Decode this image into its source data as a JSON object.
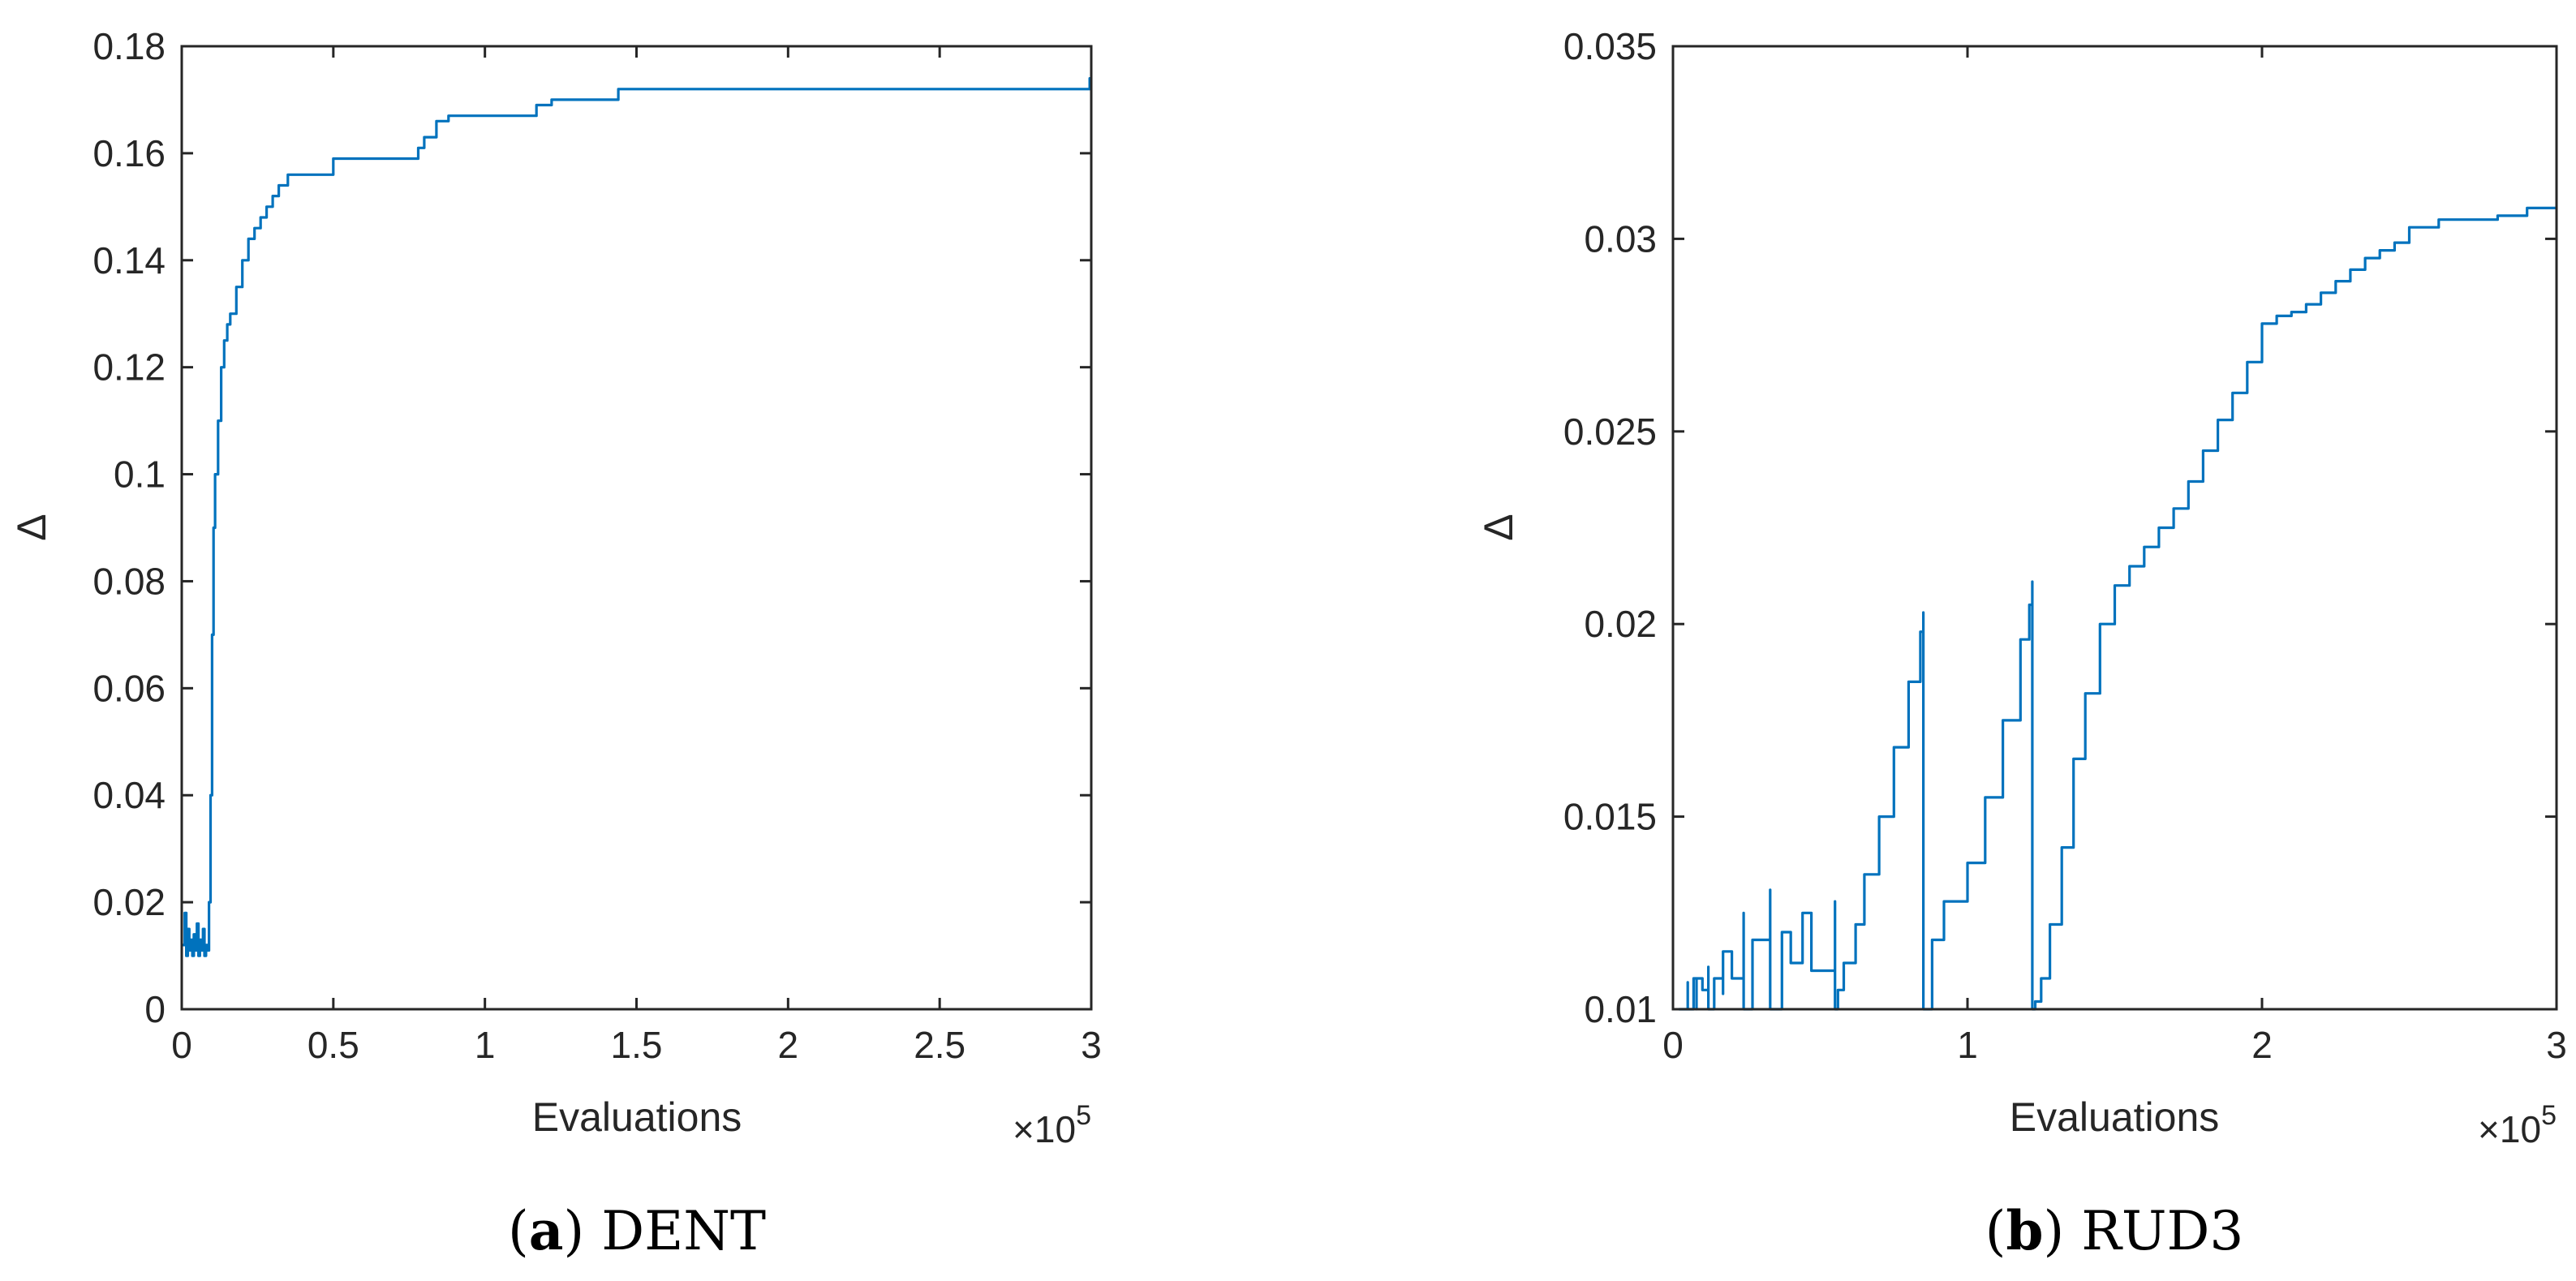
{
  "chart_data": [
    {
      "type": "line",
      "title": "",
      "caption": {
        "letter": "a",
        "name": "DENT"
      },
      "xlabel": "Evaluations",
      "ylabel": "Δ",
      "x_exponent_label": "×10",
      "x_exponent": "5",
      "xlim": [
        0,
        3
      ],
      "ylim": [
        0,
        0.18
      ],
      "xticks": [
        "0",
        "0.5",
        "1",
        "1.5",
        "2",
        "2.5",
        "3"
      ],
      "yticks": [
        "0",
        "0.02",
        "0.04",
        "0.06",
        "0.08",
        "0.1",
        "0.12",
        "0.14",
        "0.16",
        "0.18"
      ],
      "grid": false,
      "color": "#0072BD",
      "series": [
        {
          "x": [
            0,
            0.01,
            0.015,
            0.02,
            0.025,
            0.03,
            0.035,
            0.04,
            0.045,
            0.05,
            0.055,
            0.06,
            0.065,
            0.07,
            0.075,
            0.08,
            0.085,
            0.09,
            0.095,
            0.1,
            0.105,
            0.11,
            0.12,
            0.13,
            0.14,
            0.15,
            0.16,
            0.18,
            0.2,
            0.22,
            0.24,
            0.26,
            0.28,
            0.3,
            0.32,
            0.35,
            0.4,
            0.48,
            0.5,
            0.6,
            0.75,
            0.78,
            0.8,
            0.84,
            0.88,
            1.0,
            1.17,
            1.22,
            1.3,
            1.44,
            1.6,
            2.0,
            2.5,
            2.99,
            2.995,
            3.0
          ],
          "y": [
            0.012,
            0.018,
            0.01,
            0.015,
            0.011,
            0.013,
            0.01,
            0.014,
            0.011,
            0.016,
            0.01,
            0.013,
            0.011,
            0.015,
            0.01,
            0.012,
            0.011,
            0.02,
            0.04,
            0.07,
            0.09,
            0.1,
            0.11,
            0.12,
            0.125,
            0.128,
            0.13,
            0.135,
            0.14,
            0.144,
            0.146,
            0.148,
            0.15,
            0.152,
            0.154,
            0.156,
            0.156,
            0.156,
            0.159,
            0.159,
            0.159,
            0.161,
            0.163,
            0.166,
            0.167,
            0.167,
            0.169,
            0.17,
            0.17,
            0.172,
            0.172,
            0.172,
            0.172,
            0.172,
            0.174,
            0.174
          ]
        }
      ]
    },
    {
      "type": "line",
      "title": "",
      "caption": {
        "letter": "b",
        "name": "RUD3"
      },
      "xlabel": "Evaluations",
      "ylabel": "Δ",
      "x_exponent_label": "×10",
      "x_exponent": "5",
      "xlim": [
        0,
        3
      ],
      "ylim": [
        0.01,
        0.035
      ],
      "xticks": [
        "0",
        "1",
        "2",
        "3"
      ],
      "yticks": [
        "0.01",
        "0.015",
        "0.02",
        "0.025",
        "0.03",
        "0.035"
      ],
      "grid": false,
      "color": "#0072BD",
      "series": [
        {
          "x": [
            0.02,
            0.05,
            0.05,
            0.07,
            0.08,
            0.08,
            0.1,
            0.12,
            0.12,
            0.14,
            0.17,
            0.17,
            0.2,
            0.24,
            0.24,
            0.27,
            0.33,
            0.33,
            0.37,
            0.4,
            0.44,
            0.47,
            0.55,
            0.55,
            0.56,
            0.58,
            0.62,
            0.65,
            0.7,
            0.75,
            0.8,
            0.84,
            0.85,
            0.85,
            0.88,
            0.92,
            1.0,
            1.06,
            1.12,
            1.18,
            1.21,
            1.22,
            1.22,
            1.23,
            1.25,
            1.28,
            1.32,
            1.36,
            1.4,
            1.45,
            1.5,
            1.55,
            1.6,
            1.65,
            1.7,
            1.75,
            1.8,
            1.85,
            1.9,
            1.95,
            2.0,
            2.05,
            2.1,
            2.15,
            2.2,
            2.25,
            2.3,
            2.35,
            2.4,
            2.45,
            2.5,
            2.6,
            2.7,
            2.8,
            2.9,
            3.0
          ],
          "y": [
            0.01,
            0.0107,
            0.01,
            0.0108,
            0.01,
            0.0108,
            0.0105,
            0.0111,
            0.01,
            0.0108,
            0.0104,
            0.0115,
            0.0108,
            0.0125,
            0.01,
            0.0118,
            0.0131,
            0.01,
            0.012,
            0.0112,
            0.0125,
            0.011,
            0.0128,
            0.01,
            0.0105,
            0.0112,
            0.0122,
            0.0135,
            0.015,
            0.0168,
            0.0185,
            0.0198,
            0.0203,
            0.01,
            0.0118,
            0.0128,
            0.0138,
            0.0155,
            0.0175,
            0.0196,
            0.0205,
            0.0211,
            0.01,
            0.0102,
            0.0108,
            0.0122,
            0.0142,
            0.0165,
            0.0182,
            0.02,
            0.021,
            0.0215,
            0.022,
            0.0225,
            0.023,
            0.0237,
            0.0245,
            0.0253,
            0.026,
            0.0268,
            0.0278,
            0.028,
            0.0281,
            0.0283,
            0.0286,
            0.0289,
            0.0292,
            0.0295,
            0.0297,
            0.0299,
            0.0303,
            0.0305,
            0.0305,
            0.0306,
            0.0308,
            0.0308
          ]
        }
      ]
    }
  ]
}
